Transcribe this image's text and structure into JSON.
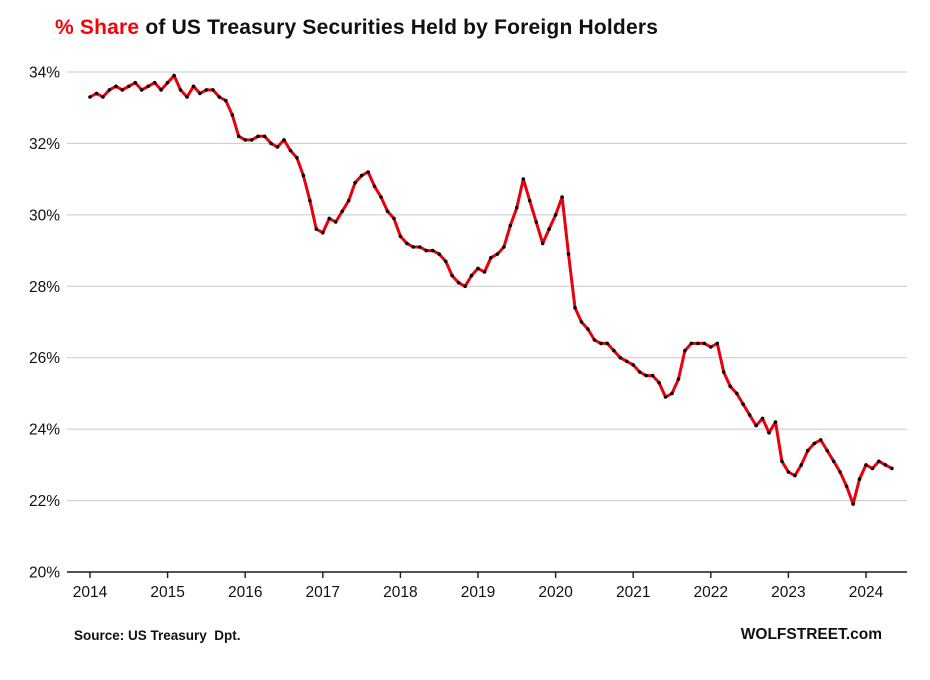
{
  "title": {
    "highlight": "% Share",
    "rest": " of US Treasury Securities Held by Foreign Holders"
  },
  "footer": {
    "source": "Source: US Treasury  Dpt.",
    "brand": "WOLFSTREET.com"
  },
  "colors": {
    "line": "#e8000d",
    "marker": "#000000",
    "grid": "#c8c8c8",
    "axis": "#1a1a1a",
    "tick_text": "#111111",
    "title_highlight": "#fb0007"
  },
  "chart_data": {
    "type": "line",
    "title": "% Share of US Treasury Securities Held by Foreign Holders",
    "xlabel": "",
    "ylabel": "",
    "ylim": [
      20,
      34
    ],
    "grid": "horizontal",
    "legend": "none",
    "y_ticks": [
      {
        "value": 34,
        "label": "34%"
      },
      {
        "value": 32,
        "label": "32%"
      },
      {
        "value": 30,
        "label": "30%"
      },
      {
        "value": 28,
        "label": "28%"
      },
      {
        "value": 26,
        "label": "26%"
      },
      {
        "value": 24,
        "label": "24%"
      },
      {
        "value": 22,
        "label": "22%"
      },
      {
        "value": 20,
        "label": "20%"
      }
    ],
    "x_ticks": [
      {
        "label": "2014"
      },
      {
        "label": "2015"
      },
      {
        "label": "2016"
      },
      {
        "label": "2017"
      },
      {
        "label": "2018"
      },
      {
        "label": "2019"
      },
      {
        "label": "2020"
      },
      {
        "label": "2021"
      },
      {
        "label": "2022"
      },
      {
        "label": "2023"
      },
      {
        "label": "2024"
      }
    ],
    "x_start": "2014-01",
    "x_frequency": "monthly",
    "series": [
      {
        "name": "% share of US Treasuries held by foreign holders",
        "values": [
          33.3,
          33.4,
          33.3,
          33.5,
          33.6,
          33.5,
          33.6,
          33.7,
          33.5,
          33.6,
          33.7,
          33.5,
          33.7,
          33.9,
          33.5,
          33.3,
          33.6,
          33.4,
          33.5,
          33.5,
          33.3,
          33.2,
          32.8,
          32.2,
          32.1,
          32.1,
          32.2,
          32.2,
          32.0,
          31.9,
          32.1,
          31.8,
          31.6,
          31.1,
          30.4,
          29.6,
          29.5,
          29.9,
          29.8,
          30.1,
          30.4,
          30.9,
          31.1,
          31.2,
          30.8,
          30.5,
          30.1,
          29.9,
          29.4,
          29.2,
          29.1,
          29.1,
          29.0,
          29.0,
          28.9,
          28.7,
          28.3,
          28.1,
          28.0,
          28.3,
          28.5,
          28.4,
          28.8,
          28.9,
          29.1,
          29.7,
          30.2,
          31.0,
          30.4,
          29.8,
          29.2,
          29.6,
          30.0,
          30.5,
          28.9,
          27.4,
          27.0,
          26.8,
          26.5,
          26.4,
          26.4,
          26.2,
          26.0,
          25.9,
          25.8,
          25.6,
          25.5,
          25.5,
          25.3,
          24.9,
          25.0,
          25.4,
          26.2,
          26.4,
          26.4,
          26.4,
          26.3,
          26.4,
          25.6,
          25.2,
          25.0,
          24.7,
          24.4,
          24.1,
          24.3,
          23.9,
          24.2,
          23.1,
          22.8,
          22.7,
          23.0,
          23.4,
          23.6,
          23.7,
          23.4,
          23.1,
          22.8,
          22.4,
          21.9,
          22.6,
          23.0,
          22.9,
          23.1,
          23.0,
          22.9
        ]
      }
    ]
  }
}
